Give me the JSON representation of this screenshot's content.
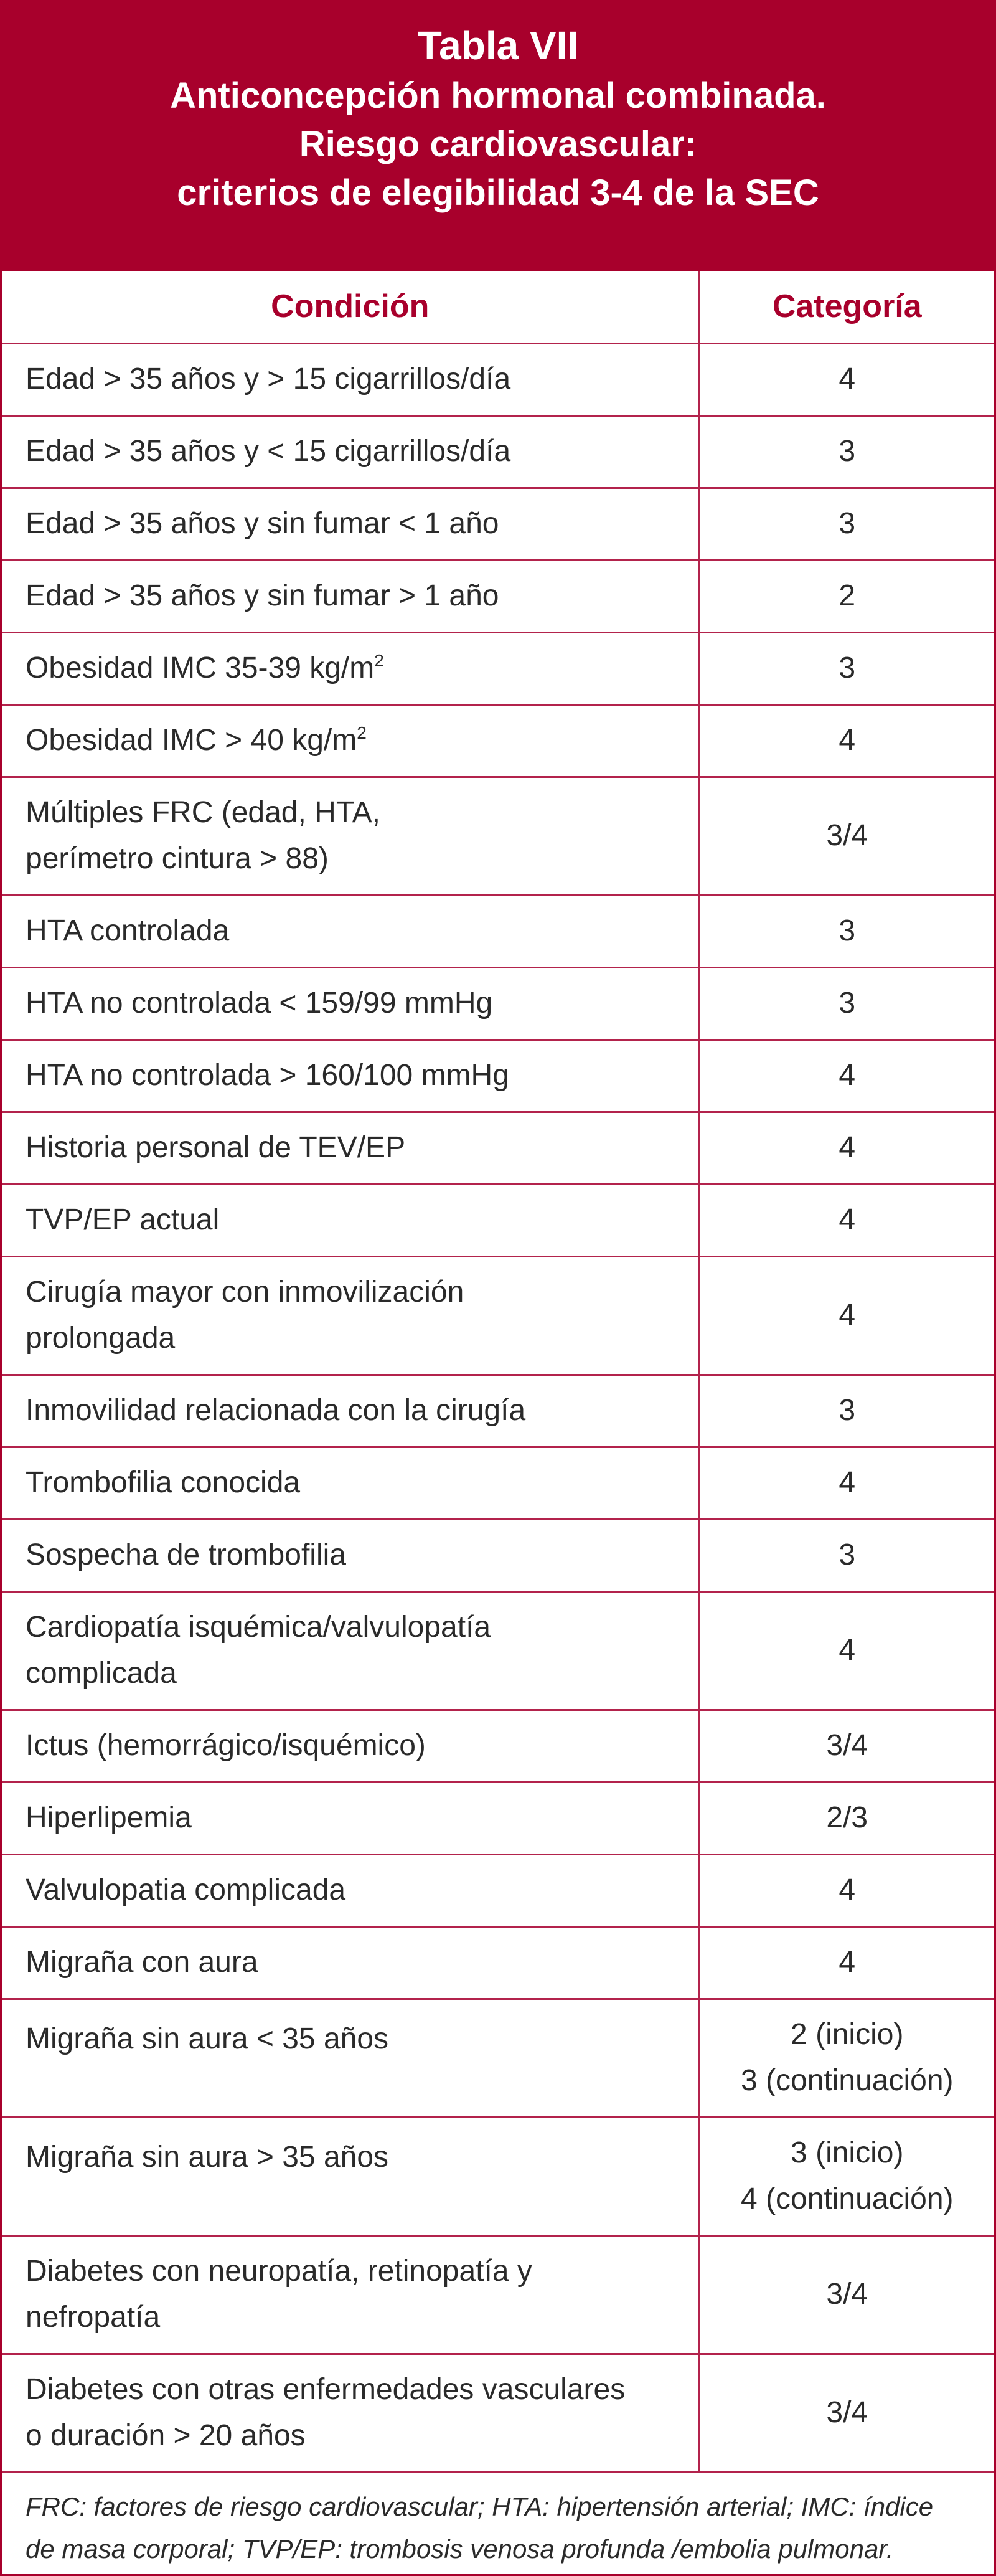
{
  "header": {
    "title": "Tabla VII",
    "subtitle_line1": "Anticoncepción hormonal combinada.",
    "subtitle_line2": "Riesgo cardiovascular:",
    "subtitle_line3": "criterios de elegibilidad 3-4 de la SEC"
  },
  "table": {
    "col_condition": "Condición",
    "col_category": "Categoría",
    "rows": [
      {
        "condition": "Edad > 35 años y > 15 cigarrillos/día",
        "category": "4"
      },
      {
        "condition": "Edad > 35 años y < 15 cigarrillos/día",
        "category": "3"
      },
      {
        "condition": "Edad > 35 años y sin fumar < 1 año",
        "category": "3"
      },
      {
        "condition": "Edad > 35 años y sin fumar > 1 año",
        "category": "2"
      },
      {
        "condition": "Obesidad IMC 35-39 kg/m",
        "sup": "2",
        "category": "3"
      },
      {
        "condition": "Obesidad IMC > 40 kg/m",
        "sup": "2",
        "category": "4"
      },
      {
        "condition_l1": "Múltiples FRC (edad, HTA,",
        "condition_l2": "perímetro cintura > 88)",
        "category": "3/4"
      },
      {
        "condition": "HTA controlada",
        "category": "3"
      },
      {
        "condition": "HTA no controlada < 159/99 mmHg",
        "category": "3"
      },
      {
        "condition": "HTA no controlada > 160/100 mmHg",
        "category": "4"
      },
      {
        "condition": "Historia personal de TEV/EP",
        "category": "4"
      },
      {
        "condition": "TVP/EP actual",
        "category": "4"
      },
      {
        "condition_l1": "Cirugía mayor con inmovilización",
        "condition_l2": "prolongada",
        "category": "4"
      },
      {
        "condition": "Inmovilidad relacionada con la cirugía",
        "category": "3"
      },
      {
        "condition": "Trombofilia conocida",
        "category": "4"
      },
      {
        "condition": "Sospecha de trombofilia",
        "category": "3"
      },
      {
        "condition_l1": "Cardiopatía isquémica/valvulopatía",
        "condition_l2": "complicada",
        "category": "4"
      },
      {
        "condition": "Ictus (hemorrágico/isquémico)",
        "category": "3/4"
      },
      {
        "condition": "Hiperlipemia",
        "category": "2/3"
      },
      {
        "condition": "Valvulopatia complicada",
        "category": "4"
      },
      {
        "condition": "Migraña con aura",
        "category": "4"
      },
      {
        "condition": "Migraña sin aura < 35 años",
        "category_l1": "2 (inicio)",
        "category_l2": "3 (continuación)"
      },
      {
        "condition": "Migraña sin aura > 35 años",
        "category_l1": "3 (inicio)",
        "category_l2": "4 (continuación)"
      },
      {
        "condition_l1": "Diabetes con neuropatía, retinopatía y",
        "condition_l2": "nefropatía",
        "category": "3/4"
      },
      {
        "condition_l1": "Diabetes con otras enfermedades vasculares",
        "condition_l2": "o duración > 20 años",
        "category": "3/4"
      }
    ]
  },
  "footnote": {
    "line1": "FRC: factores de riesgo cardiovascular; HTA: hipertensión arterial; IMC: índice",
    "line2": "de masa corporal; TVP/EP: trombosis venosa profunda /embolia pulmonar."
  }
}
